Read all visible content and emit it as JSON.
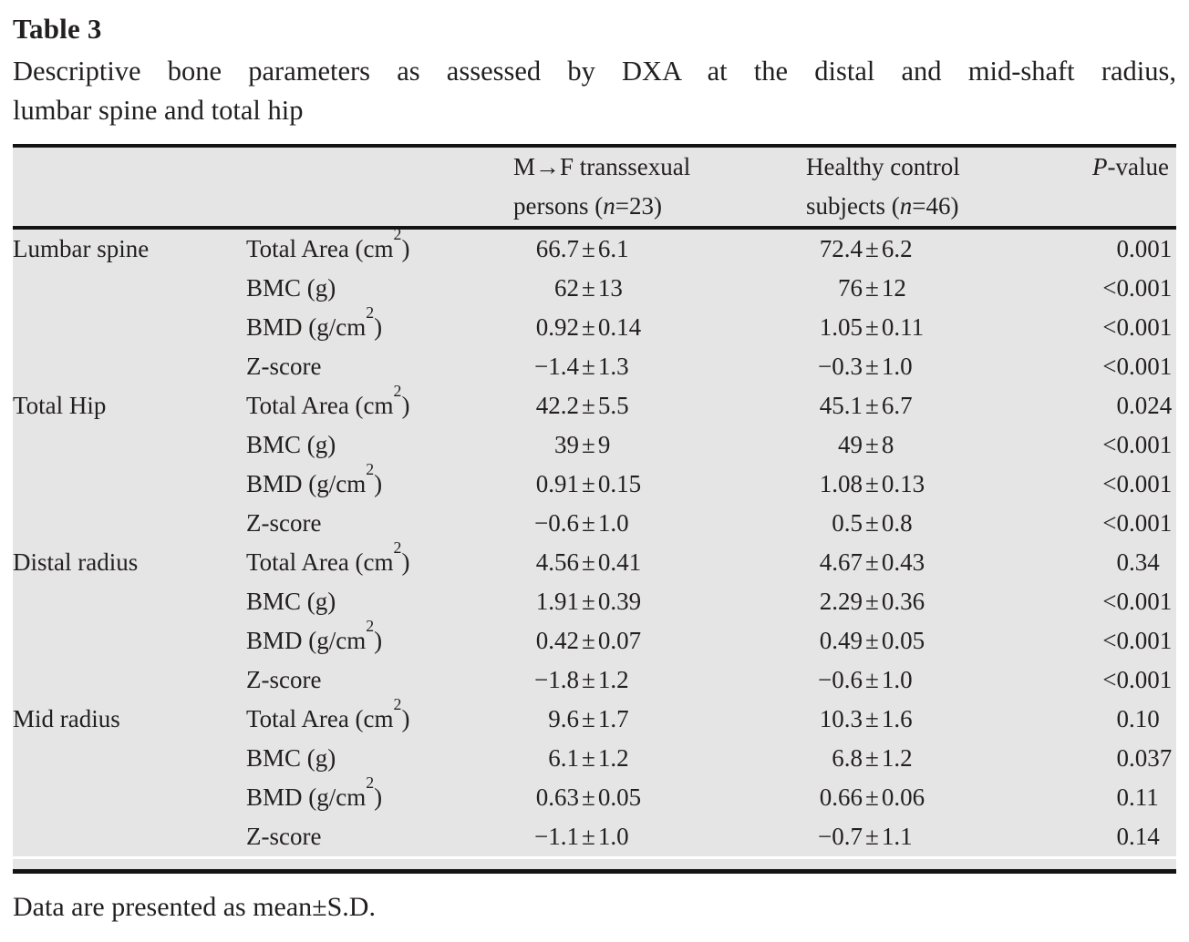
{
  "title": "Table 3",
  "caption": {
    "line1": "Descriptive bone parameters as assessed by DXA at the distal and mid-shaft radius,",
    "line2": "lumbar spine and total hip"
  },
  "table": {
    "header": {
      "mf": {
        "line1": "M→F transsexual",
        "line2_pre": "persons (",
        "line2_var": "n",
        "line2_post": "=23)"
      },
      "control": {
        "line1": "Healthy control",
        "line2_pre": "subjects (",
        "line2_var": "n",
        "line2_post": "=46)"
      },
      "p": {
        "var": "P",
        "rest": "-value"
      }
    },
    "sections": [
      {
        "region": "Lumbar spine",
        "rows": [
          {
            "param": "Total Area (cm²)",
            "mf": "66.7±6.1",
            "control": "72.4±6.2",
            "p": "0.001"
          },
          {
            "param": "BMC (g)",
            "mf": "62±13",
            "control": "76±12",
            "p": "<0.001"
          },
          {
            "param": "BMD (g/cm²)",
            "mf": "0.92±0.14",
            "control": "1.05±0.11",
            "p": "<0.001"
          },
          {
            "param": "Z-score",
            "mf": "−1.4±1.3",
            "control": "−0.3±1.0",
            "p": "<0.001"
          }
        ]
      },
      {
        "region": "Total Hip",
        "rows": [
          {
            "param": "Total Area (cm²)",
            "mf": "42.2±5.5",
            "control": "45.1±6.7",
            "p": "0.024"
          },
          {
            "param": "BMC (g)",
            "mf": "39±9",
            "control": "49±8",
            "p": "<0.001"
          },
          {
            "param": "BMD (g/cm²)",
            "mf": "0.91±0.15",
            "control": "1.08±0.13",
            "p": "<0.001"
          },
          {
            "param": "Z-score",
            "mf": "−0.6±1.0",
            "control": "0.5±0.8",
            "p": "<0.001"
          }
        ]
      },
      {
        "region": "Distal radius",
        "rows": [
          {
            "param": "Total Area (cm²)",
            "mf": "4.56±0.41",
            "control": "4.67±0.43",
            "p": "0.34"
          },
          {
            "param": "BMC (g)",
            "mf": "1.91±0.39",
            "control": "2.29±0.36",
            "p": "<0.001"
          },
          {
            "param": "BMD (g/cm²)",
            "mf": "0.42±0.07",
            "control": "0.49±0.05",
            "p": "<0.001"
          },
          {
            "param": "Z-score",
            "mf": "−1.8±1.2",
            "control": "−0.6±1.0",
            "p": "<0.001"
          }
        ]
      },
      {
        "region": "Mid radius",
        "rows": [
          {
            "param": "Total Area (cm²)",
            "mf": "9.6±1.7",
            "control": "10.3±1.6",
            "p": "0.10"
          },
          {
            "param": "BMC (g)",
            "mf": "6.1±1.2",
            "control": "6.8±1.2",
            "p": "0.037"
          },
          {
            "param": "BMD (g/cm²)",
            "mf": "0.63±0.05",
            "control": "0.66±0.06",
            "p": "0.11"
          },
          {
            "param": "Z-score",
            "mf": "−1.1±1.0",
            "control": "−0.7±1.1",
            "p": "0.14"
          }
        ]
      }
    ]
  },
  "footnote": "Data are presented as mean±S.D.",
  "colors": {
    "page_bg": "#ffffff",
    "table_bg": "#e6e5e5",
    "rule": "#141414",
    "ink": "#221f1f"
  }
}
